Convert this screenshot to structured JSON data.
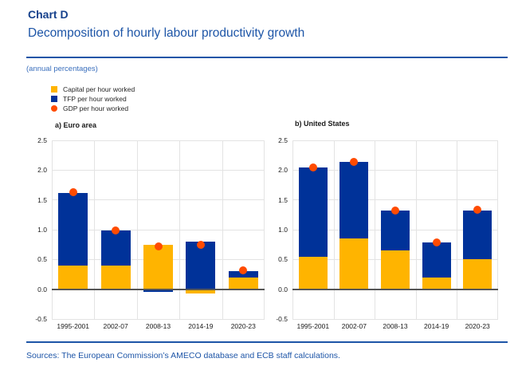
{
  "header": {
    "kicker": "Chart D",
    "title": "Decomposition of hourly labour productivity growth",
    "note": "(annual percentages)"
  },
  "legend": [
    {
      "label": "Capital per hour worked",
      "marker": "square",
      "color": "#FFB400"
    },
    {
      "label": "TFP per hour worked",
      "marker": "square",
      "color": "#003299"
    },
    {
      "label": "GDP per hour worked",
      "marker": "circle",
      "color": "#FF4B00"
    }
  ],
  "colors": {
    "capital": "#FFB400",
    "tfp": "#003299",
    "gdp_dot": "#FF4B00",
    "accent_blue": "#1d55a7",
    "gridline": "#e3e3e3",
    "zero_line": "#565656"
  },
  "chart_data": [
    {
      "type": "bar",
      "stacked": true,
      "title": "a) Euro area",
      "categories": [
        "1995-2001",
        "2002-07",
        "2008-13",
        "2014-19",
        "2020-23"
      ],
      "series": [
        {
          "name": "Capital per hour worked",
          "color": "#FFB400",
          "values": [
            0.4,
            0.4,
            0.75,
            -0.07,
            0.19
          ]
        },
        {
          "name": "TFP per hour worked",
          "color": "#003299",
          "values": [
            1.22,
            0.58,
            -0.05,
            0.8,
            0.11
          ]
        }
      ],
      "markers": {
        "name": "GDP per hour worked",
        "color": "#FF4B00",
        "values": [
          1.63,
          0.98,
          0.72,
          0.74,
          0.32
        ]
      },
      "ylim": [
        -0.5,
        2.5
      ],
      "ytick_step": 0.5,
      "grid": true,
      "legend_position": "top-left"
    },
    {
      "type": "bar",
      "stacked": true,
      "title": "b) United States",
      "categories": [
        "1995-2001",
        "2002-07",
        "2008-13",
        "2014-19",
        "2020-23"
      ],
      "series": [
        {
          "name": "Capital per hour worked",
          "color": "#FFB400",
          "values": [
            0.55,
            0.85,
            0.65,
            0.19,
            0.5
          ]
        },
        {
          "name": "TFP per hour worked",
          "color": "#003299",
          "values": [
            1.5,
            1.29,
            0.67,
            0.59,
            0.82
          ]
        }
      ],
      "markers": {
        "name": "GDP per hour worked",
        "color": "#FF4B00",
        "values": [
          2.05,
          2.14,
          1.32,
          0.78,
          1.33
        ]
      },
      "ylim": [
        -0.5,
        2.5
      ],
      "ytick_step": 0.5,
      "grid": true,
      "legend_position": "top-left"
    }
  ],
  "footer": {
    "sources": "Sources: The European Commission’s AMECO database and ECB staff calculations."
  }
}
